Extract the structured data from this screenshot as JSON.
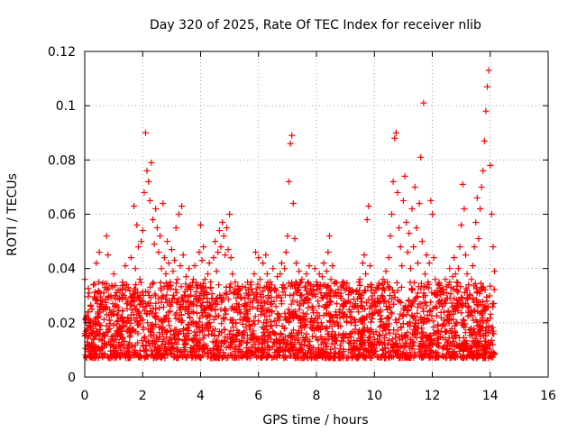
{
  "chart_data": {
    "type": "scatter",
    "title": "Day 320 of 2025, Rate Of TEC Index for receiver nlib",
    "xlabel": "GPS time / hours",
    "ylabel": "ROTI / TECUs",
    "xlim": [
      0,
      16
    ],
    "ylim": [
      0,
      0.12
    ],
    "xticks": [
      0,
      2,
      4,
      6,
      8,
      10,
      12,
      14,
      16
    ],
    "yticks": [
      0,
      0.02,
      0.04,
      0.06,
      0.08,
      0.1,
      0.12
    ],
    "ytick_labels": [
      "0",
      "0.02",
      "0.04",
      "0.06",
      "0.08",
      "0.1",
      "0.12"
    ],
    "grid": true,
    "marker": "+",
    "color": "#ff0000",
    "series": [
      {
        "name": "ROTI",
        "points": [
          [
            0.0,
            0.036
          ],
          [
            0.05,
            0.02
          ],
          [
            0.1,
            0.012
          ],
          [
            0.15,
            0.031
          ],
          [
            0.2,
            0.018
          ],
          [
            0.25,
            0.025
          ],
          [
            0.3,
            0.034
          ],
          [
            0.35,
            0.015
          ],
          [
            0.4,
            0.042
          ],
          [
            0.45,
            0.022
          ],
          [
            0.5,
            0.046
          ],
          [
            0.55,
            0.019
          ],
          [
            0.6,
            0.028
          ],
          [
            0.65,
            0.011
          ],
          [
            0.7,
            0.033
          ],
          [
            0.75,
            0.052
          ],
          [
            0.8,
            0.045
          ],
          [
            0.85,
            0.021
          ],
          [
            0.9,
            0.03
          ],
          [
            0.95,
            0.014
          ],
          [
            1.0,
            0.038
          ],
          [
            1.05,
            0.026
          ],
          [
            1.1,
            0.017
          ],
          [
            1.15,
            0.032
          ],
          [
            1.2,
            0.029
          ],
          [
            1.25,
            0.022
          ],
          [
            1.3,
            0.035
          ],
          [
            1.35,
            0.019
          ],
          [
            1.4,
            0.041
          ],
          [
            1.45,
            0.027
          ],
          [
            1.5,
            0.033
          ],
          [
            1.55,
            0.018
          ],
          [
            1.6,
            0.044
          ],
          [
            1.65,
            0.03
          ],
          [
            1.7,
            0.063
          ],
          [
            1.75,
            0.04
          ],
          [
            1.8,
            0.056
          ],
          [
            1.85,
            0.048
          ],
          [
            1.9,
            0.036
          ],
          [
            1.95,
            0.05
          ],
          [
            2.0,
            0.054
          ],
          [
            2.05,
            0.068
          ],
          [
            2.1,
            0.09
          ],
          [
            2.15,
            0.076
          ],
          [
            2.2,
            0.072
          ],
          [
            2.25,
            0.065
          ],
          [
            2.3,
            0.079
          ],
          [
            2.35,
            0.058
          ],
          [
            2.4,
            0.049
          ],
          [
            2.45,
            0.062
          ],
          [
            2.5,
            0.055
          ],
          [
            2.55,
            0.046
          ],
          [
            2.6,
            0.052
          ],
          [
            2.65,
            0.04
          ],
          [
            2.7,
            0.064
          ],
          [
            2.75,
            0.044
          ],
          [
            2.8,
            0.038
          ],
          [
            2.85,
            0.05
          ],
          [
            2.9,
            0.042
          ],
          [
            2.95,
            0.035
          ],
          [
            3.0,
            0.047
          ],
          [
            3.05,
            0.039
          ],
          [
            3.1,
            0.043
          ],
          [
            3.15,
            0.055
          ],
          [
            3.2,
            0.036
          ],
          [
            3.25,
            0.06
          ],
          [
            3.3,
            0.041
          ],
          [
            3.35,
            0.063
          ],
          [
            3.4,
            0.045
          ],
          [
            3.45,
            0.03
          ],
          [
            3.5,
            0.037
          ],
          [
            3.55,
            0.028
          ],
          [
            3.6,
            0.04
          ],
          [
            3.65,
            0.033
          ],
          [
            3.7,
            0.027
          ],
          [
            3.75,
            0.036
          ],
          [
            3.8,
            0.041
          ],
          [
            3.85,
            0.029
          ],
          [
            3.9,
            0.034
          ],
          [
            3.95,
            0.046
          ],
          [
            4.0,
            0.056
          ],
          [
            4.05,
            0.043
          ],
          [
            4.1,
            0.048
          ],
          [
            4.15,
            0.036
          ],
          [
            4.2,
            0.031
          ],
          [
            4.25,
            0.038
          ],
          [
            4.3,
            0.042
          ],
          [
            4.35,
            0.035
          ],
          [
            4.4,
            0.029
          ],
          [
            4.45,
            0.044
          ],
          [
            4.5,
            0.05
          ],
          [
            4.55,
            0.039
          ],
          [
            4.6,
            0.046
          ],
          [
            4.65,
            0.054
          ],
          [
            4.7,
            0.048
          ],
          [
            4.75,
            0.057
          ],
          [
            4.8,
            0.052
          ],
          [
            4.85,
            0.045
          ],
          [
            4.9,
            0.055
          ],
          [
            4.95,
            0.047
          ],
          [
            5.0,
            0.06
          ],
          [
            5.05,
            0.044
          ],
          [
            5.1,
            0.038
          ],
          [
            5.15,
            0.031
          ],
          [
            5.2,
            0.035
          ],
          [
            5.25,
            0.027
          ],
          [
            5.3,
            0.032
          ],
          [
            5.35,
            0.024
          ],
          [
            5.4,
            0.029
          ],
          [
            5.45,
            0.021
          ],
          [
            5.5,
            0.026
          ],
          [
            5.55,
            0.033
          ],
          [
            5.6,
            0.022
          ],
          [
            5.65,
            0.03
          ],
          [
            5.7,
            0.025
          ],
          [
            5.75,
            0.035
          ],
          [
            5.8,
            0.028
          ],
          [
            5.85,
            0.038
          ],
          [
            5.9,
            0.046
          ],
          [
            5.95,
            0.031
          ],
          [
            6.0,
            0.044
          ],
          [
            6.05,
            0.036
          ],
          [
            6.1,
            0.028
          ],
          [
            6.15,
            0.042
          ],
          [
            6.2,
            0.033
          ],
          [
            6.25,
            0.045
          ],
          [
            6.3,
            0.038
          ],
          [
            6.35,
            0.029
          ],
          [
            6.4,
            0.035
          ],
          [
            6.45,
            0.027
          ],
          [
            6.5,
            0.04
          ],
          [
            6.55,
            0.032
          ],
          [
            6.6,
            0.026
          ],
          [
            6.65,
            0.037
          ],
          [
            6.7,
            0.03
          ],
          [
            6.75,
            0.038
          ],
          [
            6.8,
            0.042
          ],
          [
            6.85,
            0.034
          ],
          [
            6.9,
            0.04
          ],
          [
            6.95,
            0.046
          ],
          [
            7.0,
            0.052
          ],
          [
            7.05,
            0.072
          ],
          [
            7.1,
            0.086
          ],
          [
            7.15,
            0.089
          ],
          [
            7.2,
            0.064
          ],
          [
            7.25,
            0.051
          ],
          [
            7.3,
            0.042
          ],
          [
            7.35,
            0.034
          ],
          [
            7.4,
            0.039
          ],
          [
            7.45,
            0.03
          ],
          [
            7.5,
            0.036
          ],
          [
            7.55,
            0.027
          ],
          [
            7.6,
            0.033
          ],
          [
            7.65,
            0.038
          ],
          [
            7.7,
            0.029
          ],
          [
            7.75,
            0.041
          ],
          [
            7.8,
            0.034
          ],
          [
            7.85,
            0.026
          ],
          [
            7.9,
            0.032
          ],
          [
            7.95,
            0.04
          ],
          [
            8.0,
            0.035
          ],
          [
            8.05,
            0.028
          ],
          [
            8.1,
            0.038
          ],
          [
            8.15,
            0.031
          ],
          [
            8.2,
            0.037
          ],
          [
            8.25,
            0.042
          ],
          [
            8.3,
            0.034
          ],
          [
            8.35,
            0.039
          ],
          [
            8.4,
            0.046
          ],
          [
            8.45,
            0.052
          ],
          [
            8.5,
            0.036
          ],
          [
            8.55,
            0.041
          ],
          [
            8.6,
            0.03
          ],
          [
            8.65,
            0.035
          ],
          [
            8.7,
            0.027
          ],
          [
            8.75,
            0.031
          ],
          [
            8.8,
            0.024
          ],
          [
            8.85,
            0.029
          ],
          [
            8.9,
            0.035
          ],
          [
            8.95,
            0.026
          ],
          [
            9.0,
            0.032
          ],
          [
            9.05,
            0.022
          ],
          [
            9.1,
            0.028
          ],
          [
            9.15,
            0.024
          ],
          [
            9.2,
            0.031
          ],
          [
            9.25,
            0.026
          ],
          [
            9.3,
            0.021
          ],
          [
            9.35,
            0.027
          ],
          [
            9.4,
            0.032
          ],
          [
            9.45,
            0.024
          ],
          [
            9.5,
            0.036
          ],
          [
            9.55,
            0.03
          ],
          [
            9.6,
            0.042
          ],
          [
            9.65,
            0.045
          ],
          [
            9.7,
            0.038
          ],
          [
            9.75,
            0.058
          ],
          [
            9.8,
            0.063
          ],
          [
            9.85,
            0.041
          ],
          [
            9.9,
            0.034
          ],
          [
            9.95,
            0.027
          ],
          [
            10.0,
            0.031
          ],
          [
            10.05,
            0.026
          ],
          [
            10.1,
            0.033
          ],
          [
            10.15,
            0.028
          ],
          [
            10.2,
            0.024
          ],
          [
            10.25,
            0.03
          ],
          [
            10.3,
            0.036
          ],
          [
            10.35,
            0.032
          ],
          [
            10.4,
            0.039
          ],
          [
            10.45,
            0.035
          ],
          [
            10.5,
            0.044
          ],
          [
            10.55,
            0.052
          ],
          [
            10.6,
            0.06
          ],
          [
            10.65,
            0.072
          ],
          [
            10.7,
            0.088
          ],
          [
            10.75,
            0.09
          ],
          [
            10.8,
            0.068
          ],
          [
            10.85,
            0.055
          ],
          [
            10.9,
            0.048
          ],
          [
            10.95,
            0.041
          ],
          [
            11.0,
            0.065
          ],
          [
            11.05,
            0.074
          ],
          [
            11.1,
            0.057
          ],
          [
            11.15,
            0.046
          ],
          [
            11.2,
            0.053
          ],
          [
            11.25,
            0.04
          ],
          [
            11.3,
            0.062
          ],
          [
            11.35,
            0.048
          ],
          [
            11.4,
            0.07
          ],
          [
            11.45,
            0.055
          ],
          [
            11.5,
            0.042
          ],
          [
            11.55,
            0.064
          ],
          [
            11.6,
            0.081
          ],
          [
            11.65,
            0.05
          ],
          [
            11.7,
            0.101
          ],
          [
            11.75,
            0.038
          ],
          [
            11.8,
            0.045
          ],
          [
            11.85,
            0.035
          ],
          [
            11.9,
            0.042
          ],
          [
            11.95,
            0.065
          ],
          [
            12.0,
            0.06
          ],
          [
            12.05,
            0.044
          ],
          [
            12.1,
            0.036
          ],
          [
            12.15,
            0.03
          ],
          [
            12.2,
            0.034
          ],
          [
            12.25,
            0.028
          ],
          [
            12.3,
            0.032
          ],
          [
            12.35,
            0.026
          ],
          [
            12.4,
            0.031
          ],
          [
            12.45,
            0.036
          ],
          [
            12.5,
            0.029
          ],
          [
            12.55,
            0.034
          ],
          [
            12.6,
            0.04
          ],
          [
            12.65,
            0.033
          ],
          [
            12.7,
            0.037
          ],
          [
            12.75,
            0.044
          ],
          [
            12.8,
            0.038
          ],
          [
            12.85,
            0.035
          ],
          [
            12.9,
            0.04
          ],
          [
            12.95,
            0.048
          ],
          [
            13.0,
            0.056
          ],
          [
            13.05,
            0.071
          ],
          [
            13.1,
            0.062
          ],
          [
            13.15,
            0.045
          ],
          [
            13.2,
            0.038
          ],
          [
            13.25,
            0.034
          ],
          [
            13.3,
            0.03
          ],
          [
            13.35,
            0.036
          ],
          [
            13.4,
            0.041
          ],
          [
            13.45,
            0.048
          ],
          [
            13.5,
            0.057
          ],
          [
            13.55,
            0.066
          ],
          [
            13.6,
            0.051
          ],
          [
            13.65,
            0.062
          ],
          [
            13.7,
            0.07
          ],
          [
            13.75,
            0.076
          ],
          [
            13.8,
            0.087
          ],
          [
            13.85,
            0.098
          ],
          [
            13.9,
            0.107
          ],
          [
            13.95,
            0.113
          ],
          [
            14.0,
            0.078
          ],
          [
            14.05,
            0.06
          ],
          [
            14.1,
            0.048
          ],
          [
            14.15,
            0.039
          ]
        ]
      }
    ]
  }
}
